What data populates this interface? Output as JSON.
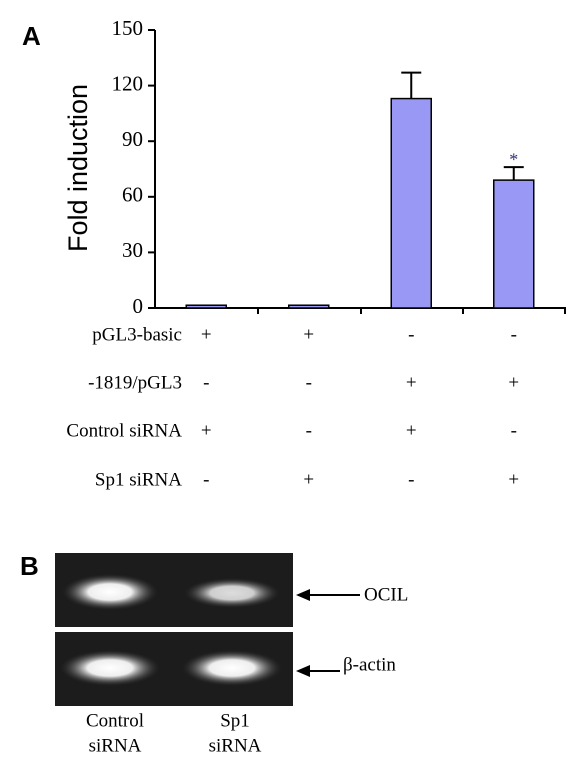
{
  "chart_data": {
    "type": "bar",
    "y_label": "Fold induction",
    "series": [
      {
        "color": "#9999f5",
        "values": [
          1.5,
          1.5,
          113,
          69
        ],
        "errors": [
          null,
          null,
          14,
          7
        ]
      }
    ],
    "annotations": [
      null,
      null,
      null,
      "*"
    ],
    "ylim": [
      0,
      150
    ],
    "yticks": [
      0,
      30,
      60,
      90,
      120,
      150
    ],
    "conditions": [
      {
        "label": "pGL3-basic",
        "values": [
          "+",
          "+",
          "-",
          "-"
        ]
      },
      {
        "label": "-1819/pGL3",
        "values": [
          "-",
          "-",
          "+",
          "+"
        ]
      },
      {
        "label": "Control  siRNA",
        "values": [
          "+",
          "-",
          "+",
          "-"
        ]
      },
      {
        "label": "Sp1 siRNA",
        "values": [
          "-",
          "+",
          "-",
          "+"
        ]
      }
    ]
  },
  "panel_labels": [
    "A",
    "B"
  ],
  "gel": {
    "bands": [
      "OCIL",
      "β-actin"
    ],
    "lanes": [
      [
        "Control",
        "siRNA"
      ],
      [
        "Sp1",
        "siRNA"
      ]
    ]
  }
}
